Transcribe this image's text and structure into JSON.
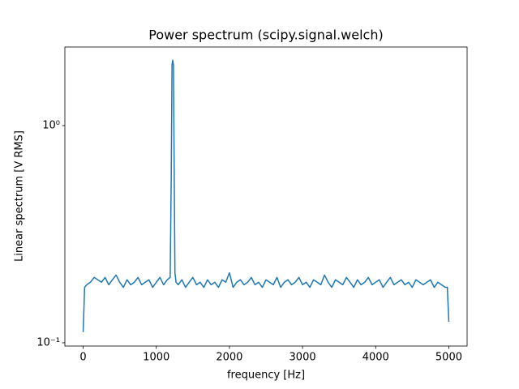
{
  "chart_data": {
    "type": "line",
    "title": "Power spectrum (scipy.signal.welch)",
    "xlabel": "frequency [Hz]",
    "ylabel": "Linear spectrum [V RMS]",
    "x": [
      0,
      20,
      50,
      100,
      150,
      200,
      250,
      300,
      350,
      400,
      450,
      500,
      550,
      600,
      650,
      700,
      750,
      800,
      850,
      900,
      950,
      1000,
      1050,
      1100,
      1150,
      1190,
      1205,
      1215,
      1225,
      1235,
      1245,
      1255,
      1270,
      1300,
      1350,
      1400,
      1450,
      1500,
      1550,
      1600,
      1650,
      1700,
      1750,
      1800,
      1850,
      1900,
      1950,
      2000,
      2050,
      2100,
      2150,
      2200,
      2250,
      2300,
      2350,
      2400,
      2450,
      2500,
      2550,
      2600,
      2650,
      2700,
      2750,
      2800,
      2850,
      2900,
      2950,
      3000,
      3050,
      3100,
      3150,
      3200,
      3250,
      3300,
      3350,
      3400,
      3450,
      3500,
      3550,
      3600,
      3650,
      3700,
      3750,
      3800,
      3850,
      3900,
      3950,
      4000,
      4050,
      4100,
      4150,
      4200,
      4250,
      4300,
      4350,
      4400,
      4450,
      4500,
      4550,
      4600,
      4650,
      4700,
      4750,
      4800,
      4850,
      4900,
      4950,
      4980,
      5000
    ],
    "values": [
      0.112,
      0.18,
      0.185,
      0.19,
      0.2,
      0.195,
      0.19,
      0.2,
      0.185,
      0.195,
      0.205,
      0.19,
      0.18,
      0.195,
      0.185,
      0.19,
      0.2,
      0.185,
      0.19,
      0.195,
      0.18,
      0.19,
      0.2,
      0.185,
      0.195,
      0.2,
      0.6,
      1.9,
      2.0,
      1.9,
      0.6,
      0.21,
      0.19,
      0.185,
      0.195,
      0.18,
      0.19,
      0.2,
      0.185,
      0.19,
      0.18,
      0.195,
      0.185,
      0.19,
      0.18,
      0.195,
      0.19,
      0.21,
      0.18,
      0.19,
      0.195,
      0.185,
      0.19,
      0.2,
      0.185,
      0.19,
      0.18,
      0.195,
      0.19,
      0.185,
      0.2,
      0.18,
      0.19,
      0.195,
      0.185,
      0.19,
      0.2,
      0.185,
      0.19,
      0.18,
      0.195,
      0.19,
      0.185,
      0.205,
      0.19,
      0.18,
      0.195,
      0.19,
      0.185,
      0.2,
      0.19,
      0.18,
      0.195,
      0.185,
      0.19,
      0.2,
      0.185,
      0.19,
      0.195,
      0.18,
      0.19,
      0.2,
      0.185,
      0.19,
      0.195,
      0.185,
      0.19,
      0.18,
      0.195,
      0.19,
      0.185,
      0.19,
      0.195,
      0.18,
      0.19,
      0.185,
      0.18,
      0.18,
      0.125
    ],
    "color": "#1f77b4",
    "xlim": [
      -250,
      5250
    ],
    "xticks": [
      0,
      1000,
      2000,
      3000,
      4000,
      5000
    ],
    "ylim": [
      0.0966,
      2.3
    ],
    "yscale": "log",
    "yticks": [
      {
        "value": 0.1,
        "label": "10⁻¹"
      },
      {
        "value": 1,
        "label": "10⁰"
      }
    ]
  }
}
